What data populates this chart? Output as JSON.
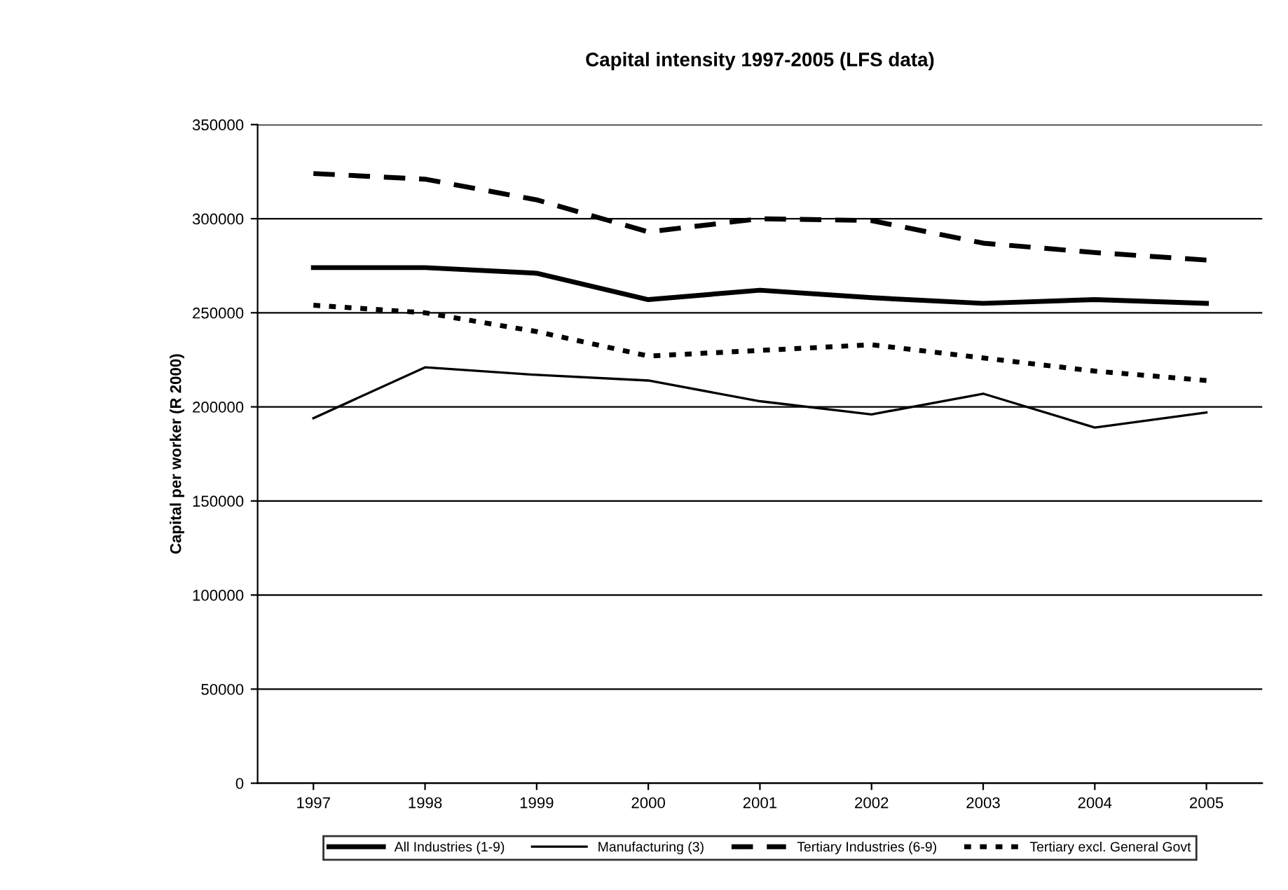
{
  "chart_data": {
    "type": "line",
    "title": "Capital intensity 1997-2005 (LFS data)",
    "ylabel": "Capital per worker (R 2000)",
    "categories": [
      "1997",
      "1998",
      "1999",
      "2000",
      "2001",
      "2002",
      "2003",
      "2004",
      "2005"
    ],
    "series": [
      {
        "name": "All Industries (1-9)",
        "color": "#000000",
        "line_style": "solid",
        "values": [
          274000,
          274000,
          271000,
          257000,
          262000,
          258000,
          255000,
          257000,
          255000
        ]
      },
      {
        "name": "Manufacturing (3)",
        "color": "#000000",
        "line_style": "solid",
        "values": [
          194000,
          221000,
          217000,
          214000,
          203000,
          196000,
          207000,
          189000,
          197000
        ]
      },
      {
        "name": "Tertiary Industries (6-9)",
        "color": "#000000",
        "line_style": "dashed",
        "values": [
          324000,
          321000,
          310000,
          293000,
          300000,
          299000,
          287000,
          282000,
          278000
        ]
      },
      {
        "name": "Tertiary excl. General Govt",
        "color": "#000000",
        "line_style": "dotted",
        "values": [
          254000,
          250000,
          240000,
          227000,
          230000,
          233000,
          226000,
          219000,
          214000
        ]
      }
    ],
    "ylim": [
      0,
      350000
    ],
    "yticks": [
      0,
      50000,
      100000,
      150000,
      200000,
      250000,
      300000,
      350000
    ],
    "grid": "y",
    "legend": "bottom",
    "marker": "none"
  }
}
